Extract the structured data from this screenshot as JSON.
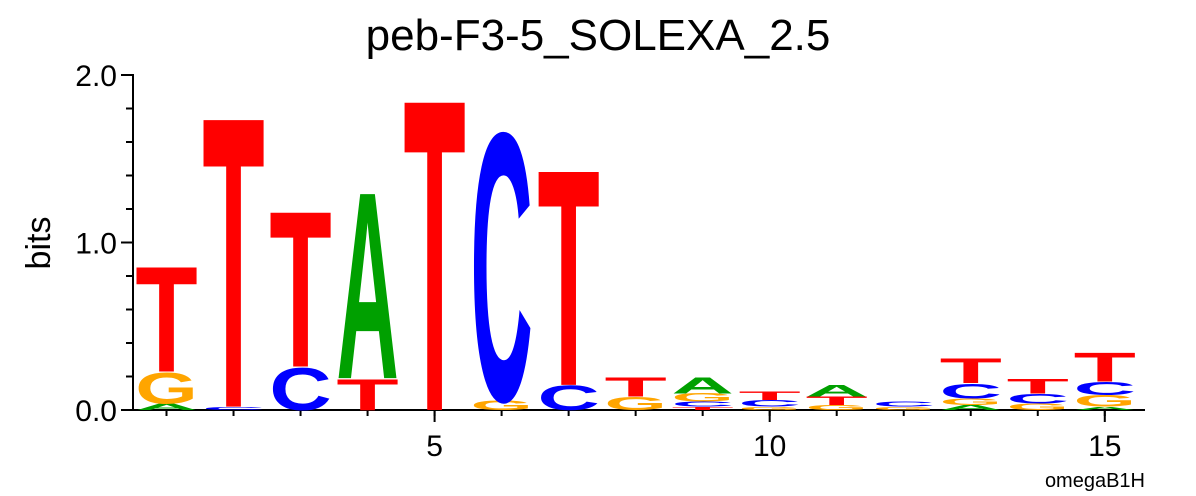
{
  "chart_data": {
    "type": "logo",
    "title": "peb-F3-5_SOLEXA_2.5",
    "y_label": "bits",
    "footer": "omegaB1H",
    "colors": {
      "A": "#00a000",
      "C": "#0000ff",
      "G": "#ffa500",
      "T": "#ff0000"
    },
    "x": [
      1,
      2,
      3,
      4,
      5,
      6,
      7,
      8,
      9,
      10,
      11,
      12,
      13,
      14,
      15
    ],
    "stacks": [
      [
        {
          "letter": "A",
          "bits": 0.04
        },
        {
          "letter": "G",
          "bits": 0.19
        },
        {
          "letter": "T",
          "bits": 0.65
        }
      ],
      [
        {
          "letter": "C",
          "bits": 0.02
        },
        {
          "letter": "T",
          "bits": 1.79
        }
      ],
      [
        {
          "letter": "C",
          "bits": 0.26
        },
        {
          "letter": "T",
          "bits": 0.96
        }
      ],
      [
        {
          "letter": "T",
          "bits": 0.19
        },
        {
          "letter": "A",
          "bits": 1.15
        }
      ],
      [
        {
          "letter": "T",
          "bits": 1.92
        }
      ],
      [
        {
          "letter": "G",
          "bits": 0.06
        },
        {
          "letter": "C",
          "bits": 1.65
        }
      ],
      [
        {
          "letter": "C",
          "bits": 0.15
        },
        {
          "letter": "T",
          "bits": 1.33
        }
      ],
      [
        {
          "letter": "G",
          "bits": 0.08
        },
        {
          "letter": "T",
          "bits": 0.12
        }
      ],
      [
        {
          "letter": "T",
          "bits": 0.02
        },
        {
          "letter": "C",
          "bits": 0.03
        },
        {
          "letter": "G",
          "bits": 0.05
        },
        {
          "letter": "A",
          "bits": 0.1
        }
      ],
      [
        {
          "letter": "G",
          "bits": 0.02
        },
        {
          "letter": "C",
          "bits": 0.04
        },
        {
          "letter": "T",
          "bits": 0.05
        }
      ],
      [
        {
          "letter": "G",
          "bits": 0.03
        },
        {
          "letter": "T",
          "bits": 0.05
        },
        {
          "letter": "A",
          "bits": 0.07
        }
      ],
      [
        {
          "letter": "G",
          "bits": 0.02
        },
        {
          "letter": "C",
          "bits": 0.03
        }
      ],
      [
        {
          "letter": "A",
          "bits": 0.03
        },
        {
          "letter": "G",
          "bits": 0.04
        },
        {
          "letter": "C",
          "bits": 0.09
        },
        {
          "letter": "T",
          "bits": 0.15
        }
      ],
      [
        {
          "letter": "G",
          "bits": 0.04
        },
        {
          "letter": "C",
          "bits": 0.06
        },
        {
          "letter": "T",
          "bits": 0.09
        }
      ],
      [
        {
          "letter": "A",
          "bits": 0.02
        },
        {
          "letter": "G",
          "bits": 0.07
        },
        {
          "letter": "C",
          "bits": 0.08
        },
        {
          "letter": "T",
          "bits": 0.18
        }
      ]
    ],
    "xlim": [
      0.5,
      15.6
    ],
    "xticks": [
      5,
      10,
      15
    ],
    "xminorticks": [
      1,
      2,
      3,
      4,
      5,
      6,
      7,
      8,
      9,
      10,
      11,
      12,
      13,
      14,
      15
    ],
    "ylim": [
      0,
      2
    ],
    "yticks": [
      {
        "value": 0,
        "label": "0.0"
      },
      {
        "value": 1,
        "label": "1.0"
      },
      {
        "value": 2,
        "label": "2.0"
      }
    ],
    "yminorticks": [
      0.2,
      0.4,
      0.6,
      0.8,
      1.2,
      1.4,
      1.6,
      1.8
    ]
  }
}
